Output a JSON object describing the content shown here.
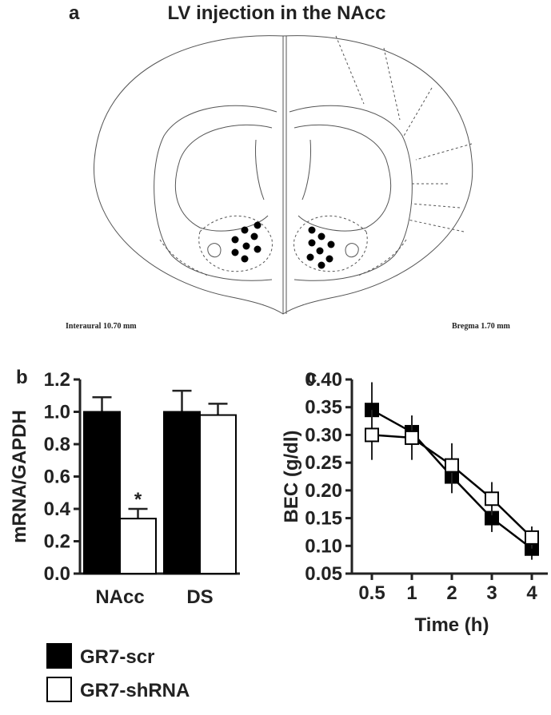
{
  "panel_a": {
    "label": "a",
    "title": "LV injection in the NAcc",
    "left_note": "Interaural 10.70 mm",
    "right_note": "Bregma 1.70 mm"
  },
  "chart_data": [
    {
      "type": "bar",
      "label": "b",
      "ylabel": "mRNA/GAPDH",
      "categories": [
        "NAcc",
        "DS"
      ],
      "series": [
        {
          "name": "GR7-scr",
          "color": "#000000",
          "values": [
            1.0,
            1.0
          ],
          "errors": [
            0.09,
            0.13
          ]
        },
        {
          "name": "GR7-shRNA",
          "color": "#ffffff",
          "values": [
            0.34,
            0.98
          ],
          "errors": [
            0.06,
            0.07
          ]
        }
      ],
      "annotation": "*",
      "ylim": [
        0,
        1.2
      ],
      "yticks": [
        {
          "value": 0,
          "label": "0.0"
        },
        0.2,
        0.4,
        0.6,
        0.8,
        {
          "value": 1,
          "label": "1.0"
        },
        1.2
      ]
    },
    {
      "type": "line",
      "label": "c",
      "xlabel": "Time (h)",
      "ylabel": "BEC (g/dl)",
      "categories": [
        "0.5",
        "1",
        "2",
        "3",
        "4"
      ],
      "series": [
        {
          "name": "GR7-scr",
          "color": "#000000",
          "values": [
            0.345,
            0.305,
            0.225,
            0.15,
            0.095
          ],
          "errors": [
            0.05,
            0.03,
            0.03,
            0.025,
            0.02
          ]
        },
        {
          "name": "GR7-shRNA",
          "color": "#ffffff",
          "values": [
            0.3,
            0.295,
            0.245,
            0.185,
            0.115
          ],
          "errors": [
            0.045,
            0.04,
            0.04,
            0.03,
            0.02
          ]
        }
      ],
      "ylim": [
        0.05,
        0.4
      ],
      "yticks": [
        0.05,
        {
          "value": 0.1,
          "label": "0.10"
        },
        0.15,
        {
          "value": 0.2,
          "label": "0.20"
        },
        0.25,
        {
          "value": 0.3,
          "label": "0.30"
        },
        0.35,
        {
          "value": 0.4,
          "label": "0.40"
        }
      ]
    }
  ]
}
